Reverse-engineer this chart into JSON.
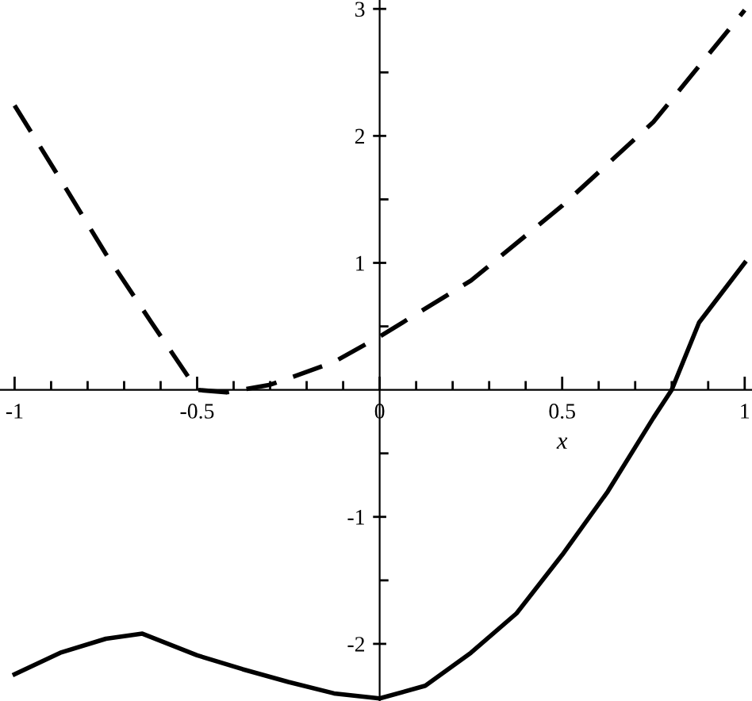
{
  "chart_data": {
    "type": "line",
    "xlabel": "x",
    "xlim": [
      -1.04,
      1.02
    ],
    "ylim": [
      -2.45,
      3.07
    ],
    "xticks": [
      -1,
      {
        "value": -0.9,
        "label": null
      },
      {
        "value": -0.8,
        "label": null
      },
      {
        "value": -0.7,
        "label": null
      },
      {
        "value": -0.6,
        "label": null
      },
      -0.5,
      {
        "value": -0.4,
        "label": null
      },
      {
        "value": -0.3,
        "label": null
      },
      {
        "value": -0.2,
        "label": null
      },
      {
        "value": -0.1,
        "label": null
      },
      0,
      {
        "value": 0.1,
        "label": null
      },
      {
        "value": 0.2,
        "label": null
      },
      {
        "value": 0.3,
        "label": null
      },
      {
        "value": 0.4,
        "label": null
      },
      0.5,
      {
        "value": 0.6,
        "label": null
      },
      {
        "value": 0.7,
        "label": null
      },
      {
        "value": 0.8,
        "label": null
      },
      {
        "value": 0.9,
        "label": null
      },
      1
    ],
    "yticks": [
      -2,
      {
        "value": -1.5,
        "label": null
      },
      -1,
      {
        "value": -0.5,
        "label": null
      },
      {
        "value": 0.5,
        "label": null
      },
      1,
      {
        "value": 1.5,
        "label": null
      },
      2,
      {
        "value": 2.5,
        "label": null
      },
      3
    ],
    "grid": false,
    "legend": false,
    "marker": "none",
    "series": [
      {
        "color": "#000000",
        "line_style": "solid",
        "x": [
          -1,
          -0.875,
          -0.75,
          -0.65,
          -0.5,
          -0.375,
          -0.25,
          -0.125,
          0,
          0.125,
          0.25,
          0.375,
          0.5,
          0.625,
          0.75,
          0.8,
          0.875,
          1
        ],
        "values": [
          -2.24,
          -2.07,
          -1.96,
          -1.92,
          -2.09,
          -2.2,
          -2.3,
          -2.39,
          -2.43,
          -2.33,
          -2.07,
          -1.76,
          -1.3,
          -0.8,
          -0.22,
          0.0,
          0.53,
          1.0
        ]
      },
      {
        "color": "#000000",
        "line_style": "dashed",
        "x": [
          -1,
          -0.875,
          -0.75,
          -0.625,
          -0.5,
          -0.42,
          -0.3,
          -0.25,
          -0.125,
          0,
          0.25,
          0.5,
          0.75,
          1
        ],
        "values": [
          2.24,
          1.66,
          1.07,
          0.53,
          0.0,
          -0.02,
          0.04,
          0.09,
          0.22,
          0.42,
          0.86,
          1.45,
          2.11,
          2.99
        ]
      }
    ]
  }
}
